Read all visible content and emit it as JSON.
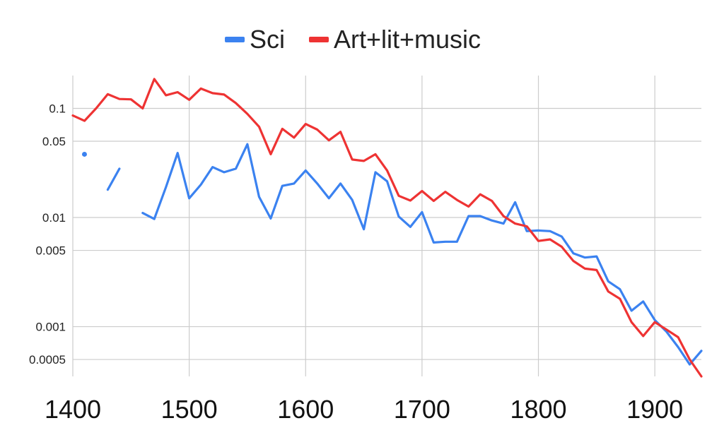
{
  "chart_data": {
    "type": "line",
    "title": "",
    "xlabel": "",
    "ylabel": "",
    "y_scale": "log",
    "xlim": [
      1400,
      1940
    ],
    "ylim": [
      0.00035,
      0.2
    ],
    "grid": true,
    "legend": "top-center",
    "x_ticks": [
      {
        "value": 1400,
        "label": "1400"
      },
      {
        "value": 1500,
        "label": "1500"
      },
      {
        "value": 1600,
        "label": "1600"
      },
      {
        "value": 1700,
        "label": "1700"
      },
      {
        "value": 1800,
        "label": "1800"
      },
      {
        "value": 1900,
        "label": "1900"
      }
    ],
    "y_ticks": [
      {
        "value": 0.1,
        "label": "0.1"
      },
      {
        "value": 0.05,
        "label": "0.05"
      },
      {
        "value": 0.01,
        "label": "0.01"
      },
      {
        "value": 0.005,
        "label": "0.005"
      },
      {
        "value": 0.001,
        "label": "0.001"
      },
      {
        "value": 0.0005,
        "label": "0.0005"
      }
    ],
    "x": [
      1400,
      1410,
      1420,
      1430,
      1440,
      1450,
      1460,
      1470,
      1480,
      1490,
      1500,
      1510,
      1520,
      1530,
      1540,
      1550,
      1560,
      1570,
      1580,
      1590,
      1600,
      1610,
      1620,
      1630,
      1640,
      1650,
      1660,
      1670,
      1680,
      1690,
      1700,
      1710,
      1720,
      1730,
      1740,
      1750,
      1760,
      1770,
      1780,
      1790,
      1800,
      1810,
      1820,
      1830,
      1840,
      1850,
      1860,
      1870,
      1880,
      1890,
      1900,
      1910,
      1920,
      1930,
      1940
    ],
    "series": [
      {
        "name": "Sci",
        "color": "#3b82f0",
        "values": [
          null,
          0.038,
          null,
          0.018,
          0.028,
          null,
          0.011,
          0.0097,
          0.019,
          0.039,
          0.015,
          0.02,
          0.029,
          0.026,
          0.028,
          0.047,
          0.0155,
          0.0098,
          0.0195,
          0.0205,
          0.027,
          0.0205,
          0.015,
          0.0205,
          0.0145,
          0.0078,
          0.026,
          0.0215,
          0.0102,
          0.0082,
          0.0112,
          0.0059,
          0.006,
          0.006,
          0.0103,
          0.0103,
          0.0094,
          0.0088,
          0.0138,
          0.0075,
          0.0076,
          0.0075,
          0.0067,
          0.0047,
          0.0043,
          0.0044,
          0.0026,
          0.0022,
          0.0014,
          0.0017,
          0.00115,
          0.0009,
          0.00065,
          0.00045,
          0.0006
        ]
      },
      {
        "name": "Art+lit+music",
        "color": "#ee3333",
        "values": [
          0.086,
          0.077,
          0.1,
          0.135,
          0.122,
          0.121,
          0.1,
          0.186,
          0.132,
          0.141,
          0.12,
          0.152,
          0.138,
          0.134,
          0.112,
          0.089,
          0.068,
          0.038,
          0.065,
          0.054,
          0.072,
          0.064,
          0.051,
          0.061,
          0.034,
          0.033,
          0.038,
          0.027,
          0.0158,
          0.0143,
          0.0175,
          0.0142,
          0.0172,
          0.0145,
          0.0126,
          0.0163,
          0.0142,
          0.0103,
          0.0088,
          0.0083,
          0.0061,
          0.0063,
          0.0054,
          0.004,
          0.0034,
          0.0033,
          0.0021,
          0.0018,
          0.0011,
          0.00082,
          0.0011,
          0.00094,
          0.0008,
          0.0005,
          0.00033
        ]
      }
    ]
  }
}
